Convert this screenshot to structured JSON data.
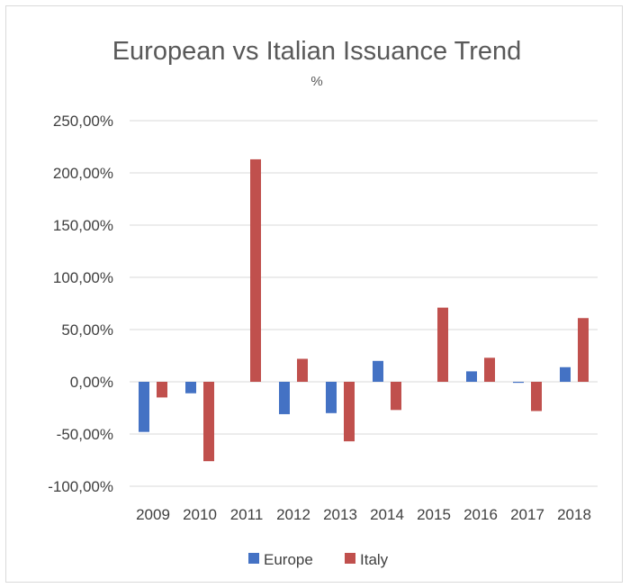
{
  "chart_data": {
    "type": "bar",
    "title": "European vs Italian Issuance Trend",
    "subtitle": "%",
    "categories": [
      "2009",
      "2010",
      "2011",
      "2012",
      "2013",
      "2014",
      "2015",
      "2016",
      "2017",
      "2018"
    ],
    "series": [
      {
        "name": "Europe",
        "color": "#4472c4",
        "values": [
          -48,
          -11,
          0,
          -31,
          -30,
          20,
          0,
          10,
          -1,
          14
        ]
      },
      {
        "name": "Italy",
        "color": "#c0504d",
        "values": [
          -15,
          -76,
          213,
          22,
          -57,
          -27,
          71,
          23,
          -28,
          61
        ]
      }
    ],
    "ylim": [
      -100,
      250
    ],
    "yticks": [
      -100,
      -50,
      0,
      50,
      100,
      150,
      200,
      250
    ],
    "ytick_labels": [
      "-100,00%",
      "-50,00%",
      "0,00%",
      "50,00%",
      "100,00%",
      "150,00%",
      "200,00%",
      "250,00%"
    ],
    "grid": true,
    "legend_position": "bottom"
  }
}
